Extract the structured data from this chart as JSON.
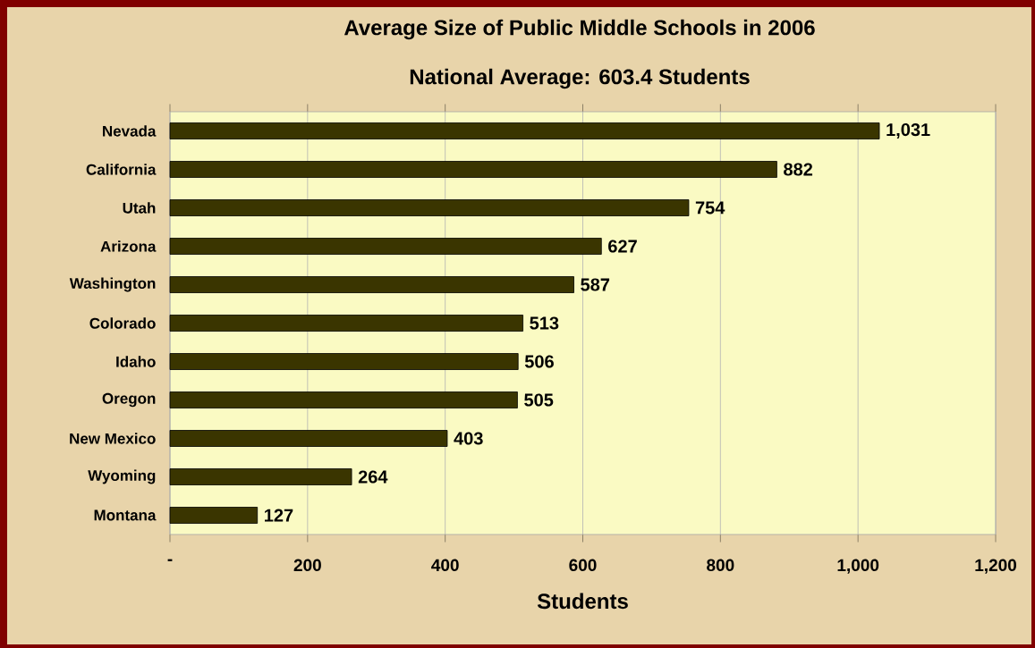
{
  "chart_data": {
    "type": "bar",
    "orientation": "horizontal",
    "title": "Average Size of Public Middle Schools in 2006",
    "subtitle": "National Average:  603.4 Students",
    "xlabel": "Students",
    "categories": [
      "Nevada",
      "California",
      "Utah",
      "Arizona",
      "Washington",
      "Colorado",
      "Idaho",
      "Oregon",
      "New Mexico",
      "Wyoming",
      "Montana"
    ],
    "values": [
      1031,
      882,
      754,
      627,
      587,
      513,
      506,
      505,
      403,
      264,
      127
    ],
    "value_labels": [
      "1,031",
      "882",
      "754",
      "627",
      "587",
      "513",
      "506",
      "505",
      "403",
      "264",
      "127"
    ],
    "color": "#3a3500",
    "xlim": [
      0,
      1200
    ],
    "xticks": [
      {
        "value": 0,
        "label": "-"
      },
      200,
      400,
      600,
      800,
      {
        "value": 1000,
        "label": "1,000"
      },
      {
        "value": 1200,
        "label": "1,200"
      }
    ],
    "grid": "x"
  }
}
